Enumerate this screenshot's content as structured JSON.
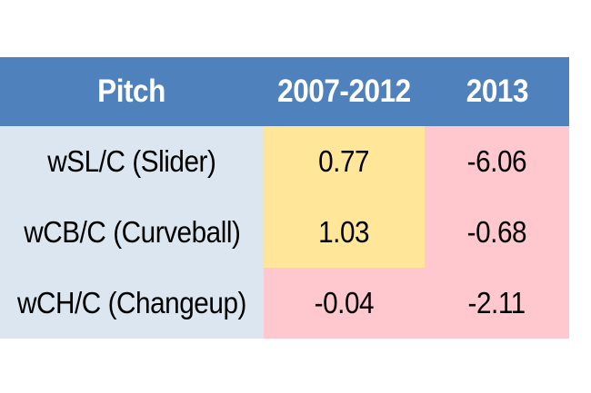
{
  "chart_data": {
    "type": "table",
    "columns": [
      "Pitch",
      "2007-2012",
      "2013"
    ],
    "rows": [
      {
        "pitch": "wSL/C (Slider)",
        "a": "0.77",
        "b": "-6.06"
      },
      {
        "pitch": "wCB/C (Curveball)",
        "a": "1.03",
        "b": "-0.68"
      },
      {
        "pitch": "wCH/C (Changeup)",
        "a": "-0.04",
        "b": "-2.11"
      }
    ]
  },
  "colors": {
    "header": "#4f81bd",
    "pitch_column": "#dce6f1",
    "positive": "#ffe699",
    "negative": "#ffc7ce"
  }
}
